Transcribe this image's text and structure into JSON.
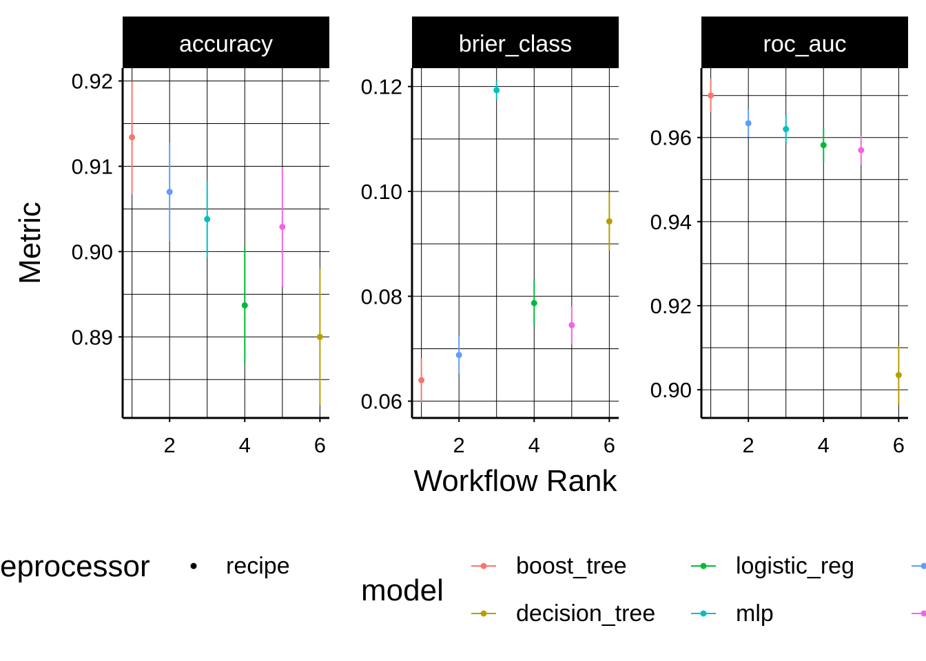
{
  "chart_data": {
    "type": "scatter",
    "subtype": "point-with-error-bars, faceted",
    "xlabel": "Workflow Rank",
    "ylabel": "Metric",
    "x_ticks": [
      2,
      4,
      6
    ],
    "grid": true,
    "legend": {
      "position": "bottom",
      "preprocessor": {
        "title": "preprocessor",
        "visible_title": "eprocessor",
        "items": [
          "recipe"
        ]
      },
      "model": {
        "title": "model",
        "items": [
          {
            "name": "boost_tree",
            "color": "#F8766D"
          },
          {
            "name": "logistic_reg",
            "color": "#00BA38"
          },
          {
            "name": "",
            "color": "#619CFF"
          },
          {
            "name": "decision_tree",
            "color": "#B79F00"
          },
          {
            "name": "mlp",
            "color": "#00BFC4"
          },
          {
            "name": "",
            "color": "#F564E3"
          }
        ]
      }
    },
    "facets": [
      {
        "title": "accuracy",
        "ylim": [
          0.8805,
          0.9215
        ],
        "y_ticks": [
          0.89,
          0.9,
          0.91,
          0.92
        ],
        "y_tick_labels": [
          "0.89",
          "0.90",
          "0.91",
          "0.92"
        ],
        "points": [
          {
            "rank": 1,
            "mean": 0.9134,
            "low": 0.9067,
            "high": 0.92,
            "color": "#F8766D"
          },
          {
            "rank": 2,
            "mean": 0.907,
            "low": 0.9012,
            "high": 0.9128,
            "color": "#619CFF"
          },
          {
            "rank": 3,
            "mean": 0.9038,
            "low": 0.8993,
            "high": 0.9083,
            "color": "#00BFC4"
          },
          {
            "rank": 4,
            "mean": 0.8937,
            "low": 0.8868,
            "high": 0.9006,
            "color": "#00BA38"
          },
          {
            "rank": 5,
            "mean": 0.9029,
            "low": 0.8959,
            "high": 0.9099,
            "color": "#F564E3"
          },
          {
            "rank": 6,
            "mean": 0.89,
            "low": 0.882,
            "high": 0.898,
            "color": "#B79F00"
          }
        ]
      },
      {
        "title": "brier_class",
        "ylim": [
          0.0568,
          0.1235
        ],
        "y_ticks": [
          0.06,
          0.08,
          0.1,
          0.12
        ],
        "y_tick_labels": [
          "0.06",
          "0.08",
          "0.10",
          "0.12"
        ],
        "points": [
          {
            "rank": 1,
            "mean": 0.064,
            "low": 0.0598,
            "high": 0.0682,
            "color": "#F8766D"
          },
          {
            "rank": 2,
            "mean": 0.0688,
            "low": 0.0652,
            "high": 0.0724,
            "color": "#619CFF"
          },
          {
            "rank": 3,
            "mean": 0.1193,
            "low": 0.1175,
            "high": 0.1211,
            "color": "#00BFC4"
          },
          {
            "rank": 4,
            "mean": 0.0787,
            "low": 0.0744,
            "high": 0.083,
            "color": "#00BA38"
          },
          {
            "rank": 5,
            "mean": 0.0745,
            "low": 0.0709,
            "high": 0.0781,
            "color": "#F564E3"
          },
          {
            "rank": 6,
            "mean": 0.0943,
            "low": 0.0887,
            "high": 0.0999,
            "color": "#B79F00"
          }
        ]
      },
      {
        "title": "roc_auc",
        "ylim": [
          0.8933,
          0.9765
        ],
        "y_ticks": [
          0.9,
          0.92,
          0.94,
          0.96
        ],
        "y_tick_labels": [
          "0.90",
          "0.92",
          "0.94",
          "0.96"
        ],
        "points": [
          {
            "rank": 1,
            "mean": 0.97,
            "low": 0.966,
            "high": 0.974,
            "color": "#F8766D"
          },
          {
            "rank": 2,
            "mean": 0.9634,
            "low": 0.9601,
            "high": 0.9667,
            "color": "#619CFF"
          },
          {
            "rank": 3,
            "mean": 0.962,
            "low": 0.9587,
            "high": 0.9653,
            "color": "#00BFC4"
          },
          {
            "rank": 4,
            "mean": 0.9582,
            "low": 0.9542,
            "high": 0.9622,
            "color": "#00BA38"
          },
          {
            "rank": 5,
            "mean": 0.957,
            "low": 0.9535,
            "high": 0.9605,
            "color": "#F564E3"
          },
          {
            "rank": 6,
            "mean": 0.9035,
            "low": 0.8965,
            "high": 0.9105,
            "color": "#B79F00"
          }
        ]
      }
    ]
  }
}
